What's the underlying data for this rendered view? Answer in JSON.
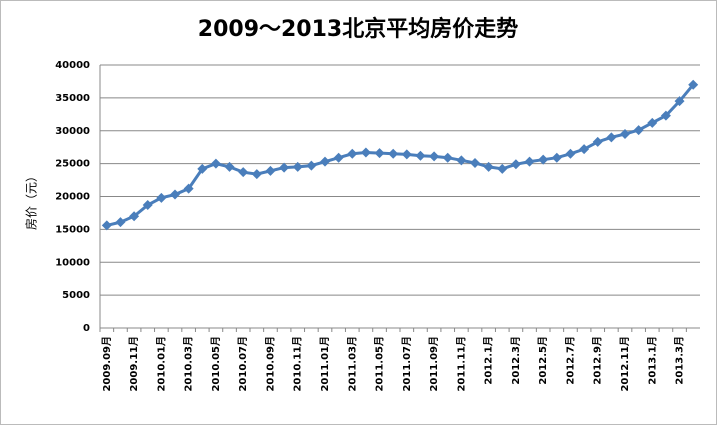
{
  "chart_data": {
    "type": "line",
    "title": "2009～2013北京平均房价走势",
    "y_label": "房价（元）",
    "categories": [
      "2009.09月",
      null,
      "2009.11月",
      null,
      "2010.01月",
      null,
      "2010.03月",
      null,
      "2010.05月",
      null,
      "2010.07月",
      null,
      "2010.09月",
      null,
      "2010.11月",
      null,
      "2011.01月",
      null,
      "2011.03月",
      null,
      "2011.05月",
      null,
      "2011.07月",
      null,
      "2011.09月",
      null,
      "2011.11月",
      null,
      "2012.1月",
      null,
      "2012.3月",
      null,
      "2012.5月",
      null,
      "2012.7月",
      null,
      "2012.9月",
      null,
      "2012.11月",
      null,
      "2013.1月",
      null,
      "2013.3月",
      null
    ],
    "values": [
      15600,
      16100,
      17000,
      18700,
      19800,
      20300,
      21200,
      24200,
      25000,
      24500,
      23700,
      23400,
      23900,
      24400,
      24500,
      24700,
      25300,
      25900,
      26500,
      26700,
      26600,
      26500,
      26400,
      26200,
      26100,
      25900,
      25500,
      25100,
      24500,
      24200,
      24900,
      25300,
      25600,
      25900,
      26500,
      27200,
      28300,
      29000,
      29500,
      30100,
      31200,
      32300,
      34500,
      37000
    ],
    "color": "#4a7ebb",
    "ylim": [
      0,
      40000
    ],
    "yticks": [
      0,
      5000,
      10000,
      15000,
      20000,
      25000,
      30000,
      35000,
      40000
    ],
    "grid": true
  }
}
